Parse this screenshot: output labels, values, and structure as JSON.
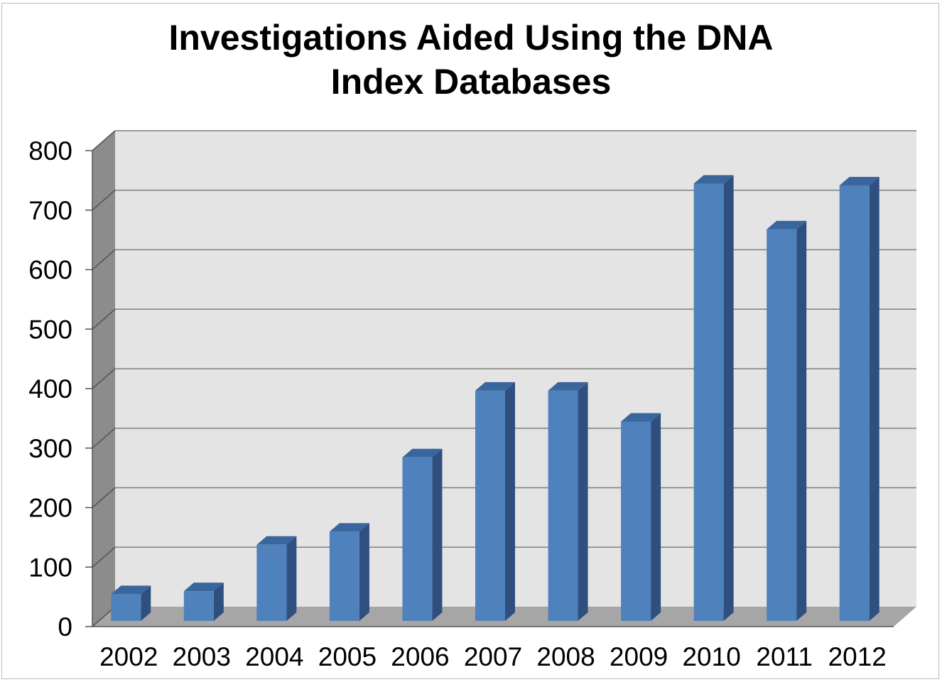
{
  "chart_data": {
    "type": "bar",
    "title_lines": [
      "Investigations Aided Using the DNA",
      "Index Databases"
    ],
    "categories": [
      "2002",
      "2003",
      "2004",
      "2005",
      "2006",
      "2007",
      "2008",
      "2009",
      "2010",
      "2011",
      "2012"
    ],
    "values": [
      45,
      50,
      128,
      150,
      275,
      387,
      387,
      335,
      735,
      658,
      732
    ],
    "ylim": [
      0,
      800
    ],
    "yticks": [
      0,
      100,
      200,
      300,
      400,
      500,
      600,
      700,
      800
    ],
    "grid": true,
    "legend": "none",
    "xlabel": "",
    "ylabel": "",
    "colors": {
      "bar_front": "#4f81bd",
      "bar_side": "#2f4f7f",
      "bar_top": "#3a669e",
      "wall": "#e4e4e4",
      "left_wall": "#8c8c8c",
      "floor": "#a6a6a6",
      "gridline": "#7f7f7f"
    }
  }
}
